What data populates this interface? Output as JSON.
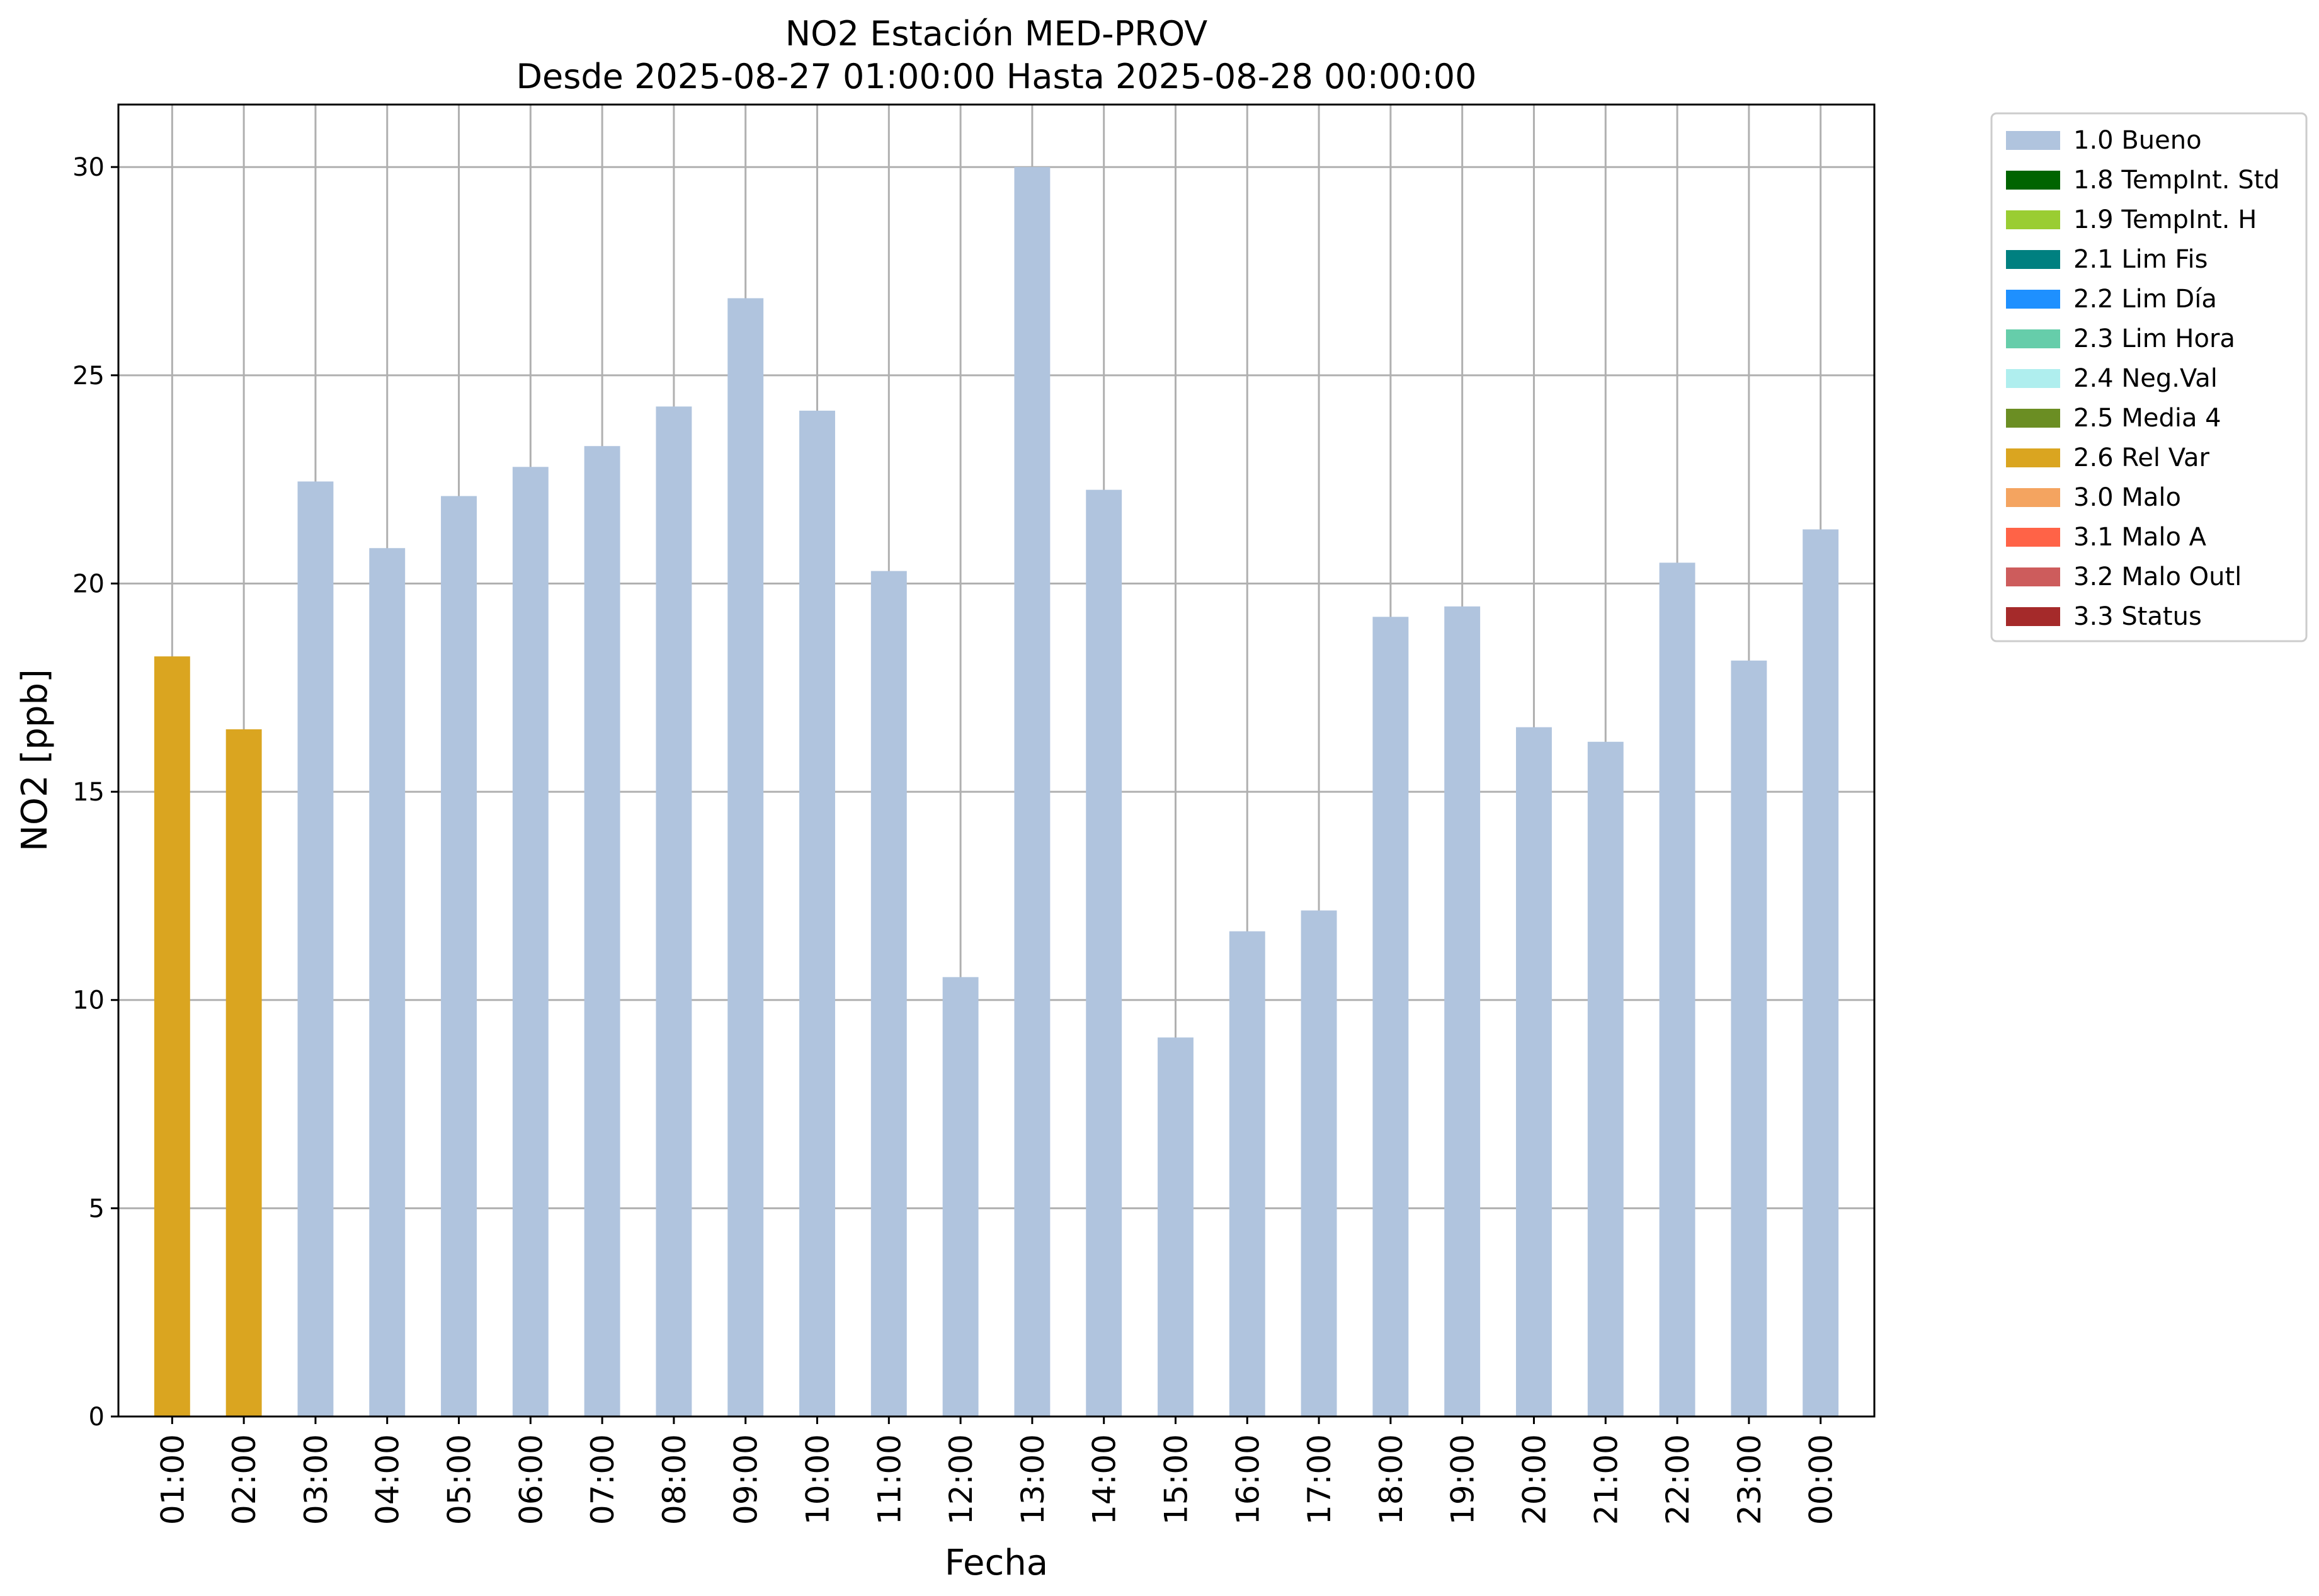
{
  "chart_data": {
    "type": "bar",
    "title": "NO2 Estación MED-PROV",
    "subtitle": "Desde 2025-08-27 01:00:00 Hasta 2025-08-28 00:00:00",
    "xlabel": "Fecha",
    "ylabel": "NO2 [ppb]",
    "ylim": [
      0,
      31.5
    ],
    "yticks": [
      0,
      5,
      10,
      15,
      20,
      25,
      30
    ],
    "grid": true,
    "legend_position": "outside-top-right",
    "categories": [
      "01:00",
      "02:00",
      "03:00",
      "04:00",
      "05:00",
      "06:00",
      "07:00",
      "08:00",
      "09:00",
      "10:00",
      "11:00",
      "12:00",
      "13:00",
      "14:00",
      "15:00",
      "16:00",
      "17:00",
      "18:00",
      "19:00",
      "20:00",
      "21:00",
      "22:00",
      "23:00",
      "00:00"
    ],
    "values": [
      18.25,
      16.5,
      22.45,
      20.85,
      22.1,
      22.8,
      23.3,
      24.25,
      26.85,
      24.15,
      20.3,
      10.55,
      30.0,
      22.25,
      9.1,
      11.65,
      12.15,
      19.2,
      19.45,
      16.55,
      16.2,
      20.5,
      18.15,
      21.3
    ],
    "flags": [
      "2.6 Rel Var",
      "2.6 Rel Var",
      "1.0 Bueno",
      "1.0 Bueno",
      "1.0 Bueno",
      "1.0 Bueno",
      "1.0 Bueno",
      "1.0 Bueno",
      "1.0 Bueno",
      "1.0 Bueno",
      "1.0 Bueno",
      "1.0 Bueno",
      "1.0 Bueno",
      "1.0 Bueno",
      "1.0 Bueno",
      "1.0 Bueno",
      "1.0 Bueno",
      "1.0 Bueno",
      "1.0 Bueno",
      "1.0 Bueno",
      "1.0 Bueno",
      "1.0 Bueno",
      "1.0 Bueno",
      "1.0 Bueno"
    ],
    "legend": [
      {
        "label": "1.0 Bueno",
        "color": "#b0c4de"
      },
      {
        "label": "1.8 TempInt. Std",
        "color": "#006400"
      },
      {
        "label": "1.9 TempInt. H",
        "color": "#9acd32"
      },
      {
        "label": "2.1 Lim Fis",
        "color": "#008080"
      },
      {
        "label": "2.2 Lim Día",
        "color": "#1e90ff"
      },
      {
        "label": "2.3 Lim Hora",
        "color": "#66cdaa"
      },
      {
        "label": "2.4 Neg.Val",
        "color": "#afeeee"
      },
      {
        "label": "2.5 Media 4",
        "color": "#6b8e23"
      },
      {
        "label": "2.6 Rel Var",
        "color": "#daa520"
      },
      {
        "label": "3.0 Malo",
        "color": "#f4a460"
      },
      {
        "label": "3.1 Malo A",
        "color": "#ff6347"
      },
      {
        "label": "3.2 Malo Outl",
        "color": "#cd5c5c"
      },
      {
        "label": "3.3 Status",
        "color": "#a52a2a"
      }
    ]
  }
}
